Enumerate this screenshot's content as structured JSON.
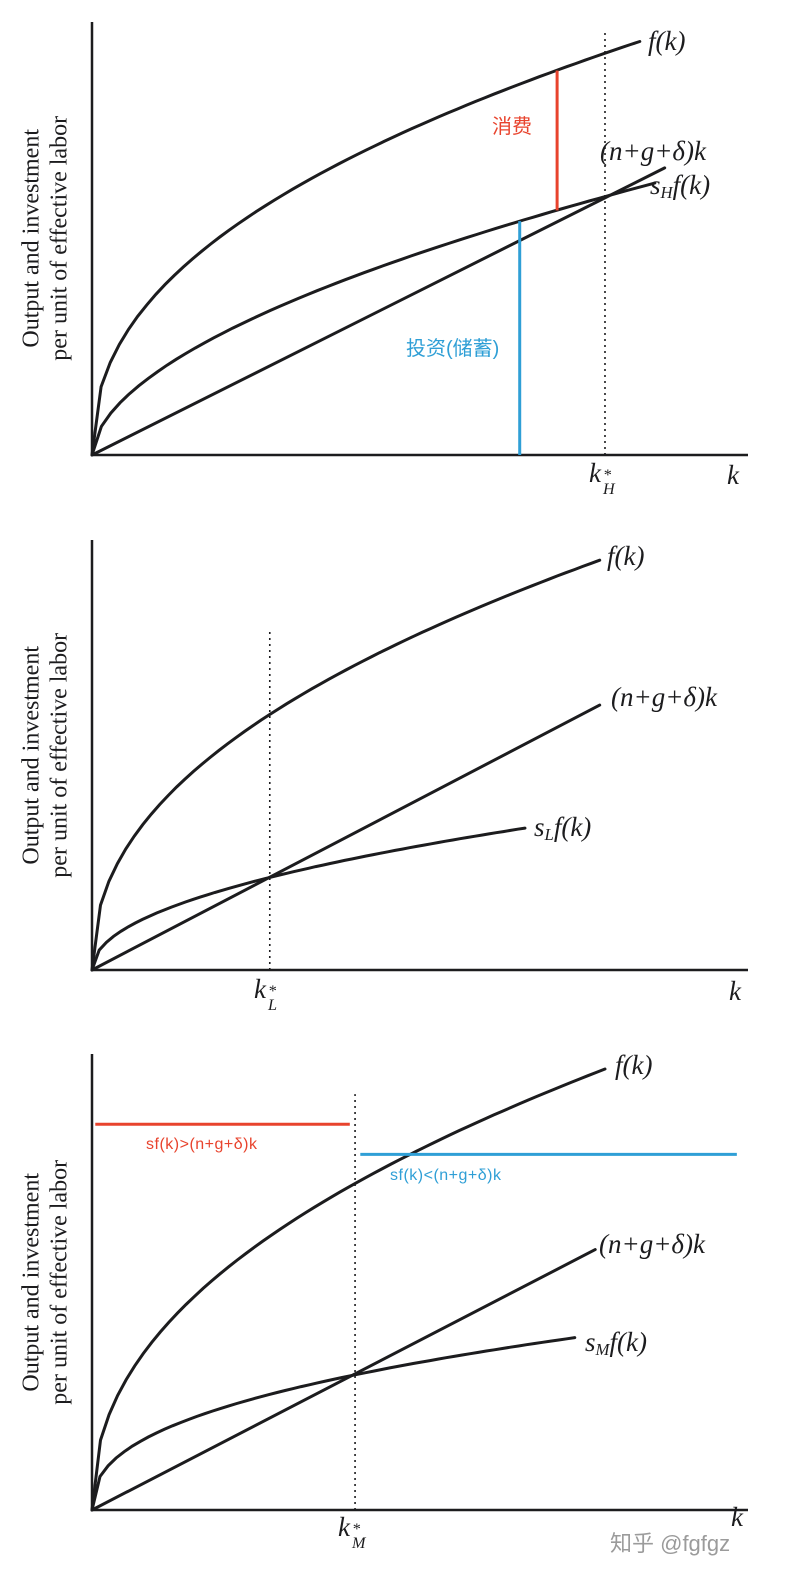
{
  "colors": {
    "ink": "#1c1c1e",
    "axis": "#1c1c1e",
    "red": "#e8432d",
    "blue": "#2f9fd6",
    "watermark": "#9b9b9b"
  },
  "ylabel": {
    "line1": "Output and investment",
    "line2": "per unit of effective labor"
  },
  "watermark": "知乎 @fgfgz",
  "panels": [
    {
      "labels": {
        "fk": "f(k)",
        "break_even": "(n+g+δ)k",
        "s_prefix": "s",
        "s_sub": "H",
        "s_suffix": "f(k)",
        "kstar_base": "k",
        "kstar_sup": "*",
        "kstar_sub": "H",
        "x_axis": "k"
      },
      "annotations": {
        "consumption": "消费",
        "investment": "投资(储蓄)"
      }
    },
    {
      "labels": {
        "fk": "f(k)",
        "break_even": "(n+g+δ)k",
        "s_prefix": "s",
        "s_sub": "L",
        "s_suffix": "f(k)",
        "kstar_base": "k",
        "kstar_sup": "*",
        "kstar_sub": "L",
        "x_axis": "k"
      }
    },
    {
      "labels": {
        "fk": "f(k)",
        "break_even": "(n+g+δ)k",
        "s_prefix": "s",
        "s_sub": "M",
        "s_suffix": "f(k)",
        "kstar_base": "k",
        "kstar_sup": "*",
        "kstar_sub": "M",
        "x_axis": "k"
      },
      "annotations": {
        "left": "sf(k)>(n+g+δ)k",
        "right": "sf(k)<(n+g+δ)k"
      }
    }
  ],
  "chart_data": [
    {
      "type": "line",
      "title": "Solow diagram, high saving rate s_H: consumption and investment at k left of k*_H",
      "xlabel": "k",
      "ylabel": "Output and investment per unit of effective labor",
      "axes_numeric": false,
      "series": [
        {
          "name": "f(k)",
          "kind": "pow",
          "exp": 0.44,
          "xend": 0.835,
          "ytop": 0.955
        },
        {
          "name": "(n+g+δ)k",
          "kind": "line",
          "xend": 0.873,
          "ytop": 0.663
        },
        {
          "name": "s_H f(k)",
          "kind": "pow",
          "exp": 0.55,
          "xend": 0.858,
          "ytop": 0.628
        }
      ],
      "dashed": {
        "x": 0.782,
        "ytop": 0.98,
        "label": "k*_H"
      },
      "segments": [
        {
          "x": 0.709,
          "y1": 0.565,
          "y2": 0.888,
          "color": "red",
          "label": "消费"
        },
        {
          "x": 0.652,
          "y1": 0,
          "y2": 0.54,
          "color": "blue",
          "label": "投资(储蓄)"
        }
      ]
    },
    {
      "type": "line",
      "title": "Solow diagram, low saving rate s_L with steady state k*_L",
      "xlabel": "k",
      "ylabel": "Output and investment per unit of effective labor",
      "axes_numeric": false,
      "series": [
        {
          "name": "f(k)",
          "kind": "pow",
          "exp": 0.45,
          "xend": 0.774,
          "ytop": 0.953
        },
        {
          "name": "(n+g+δ)k",
          "kind": "line",
          "xend": 0.774,
          "ytop": 0.616
        },
        {
          "name": "s_L f(k)",
          "kind": "pow",
          "exp": 0.48,
          "xend": 0.66,
          "ytop": 0.33
        }
      ],
      "dashed": {
        "x": 0.271,
        "ytop": 0.79,
        "label": "k*_L"
      }
    },
    {
      "type": "line",
      "title": "Solow diagram, saving rate s_M: sf(k)>(n+g+δ)k left of k*_M, sf(k)<(n+g+δ)k right of k*_M",
      "xlabel": "k",
      "ylabel": "Output and investment per unit of effective labor",
      "axes_numeric": false,
      "series": [
        {
          "name": "f(k)",
          "kind": "pow",
          "exp": 0.45,
          "xend": 0.782,
          "ytop": 0.967
        },
        {
          "name": "(n+g+δ)k",
          "kind": "line",
          "xend": 0.767,
          "ytop": 0.571
        },
        {
          "name": "s_M f(k)",
          "kind": "pow",
          "exp": 0.4,
          "xend": 0.736,
          "ytop": 0.378
        }
      ],
      "dashed": {
        "x": 0.401,
        "ytop": 0.912,
        "label": "k*_M"
      },
      "segments": [
        {
          "y": 0.846,
          "x1": 0.005,
          "x2": 0.393,
          "color": "red",
          "label": "sf(k)>(n+g+δ)k"
        },
        {
          "y": 0.78,
          "x1": 0.409,
          "x2": 0.983,
          "color": "blue",
          "label": "sf(k)<(n+g+δ)k"
        }
      ]
    }
  ]
}
